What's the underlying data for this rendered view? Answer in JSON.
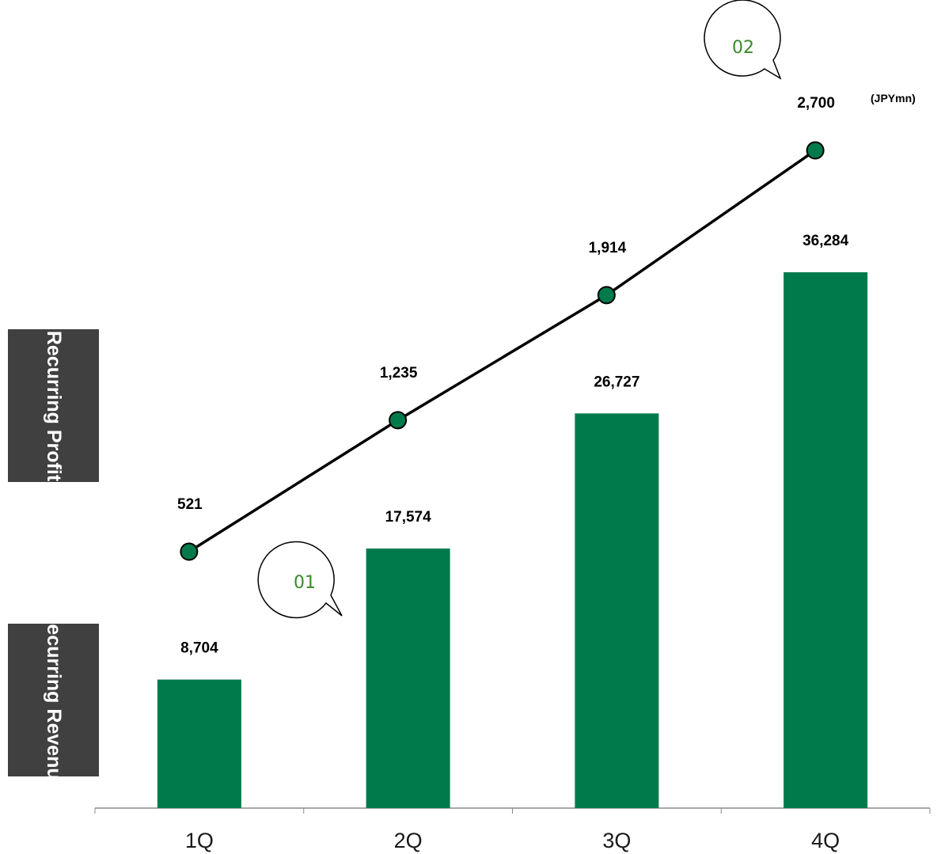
{
  "chart_data": {
    "type": "bar",
    "categories": [
      "1Q",
      "2Q",
      "3Q",
      "4Q"
    ],
    "series": [
      {
        "name": "Recurring Revenue",
        "type": "bar",
        "values": [
          8704,
          17574,
          26727,
          36284
        ],
        "labels": [
          "8,704",
          "17,574",
          "26,727",
          "36,284"
        ]
      },
      {
        "name": "Recurring Profit",
        "type": "line",
        "values": [
          521,
          1235,
          1914,
          2700
        ],
        "labels": [
          "521",
          "1,235",
          "1,914",
          "2,700"
        ]
      }
    ],
    "unit": "(JPYmn)",
    "callouts": [
      "01",
      "02"
    ],
    "colors": {
      "bar": "#007a4b",
      "line": "#000000",
      "marker": "#007a4b",
      "side_label_bg": "#404040",
      "callout_text": "#3a8a2a"
    }
  }
}
